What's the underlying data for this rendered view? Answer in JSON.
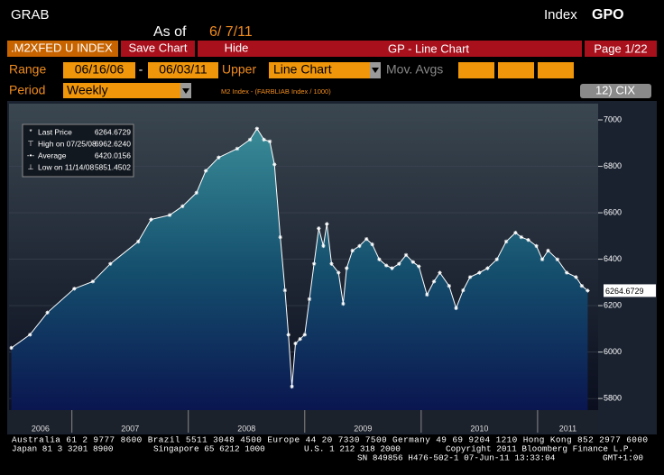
{
  "header": {
    "left": "GRAB",
    "as_of_label": "As of",
    "as_of_date": "6/ 7/11",
    "right_prefix": "Index",
    "right_code": "GPO"
  },
  "toolbar": {
    "ticker": ".M2XFED U INDEX",
    "save": "Save Chart",
    "hide": "Hide",
    "title": "GP - Line Chart",
    "page": "Page 1/22"
  },
  "controls": {
    "range_label": "Range",
    "start": "06/16/06",
    "dash": "-",
    "end": "06/03/11",
    "upper_label": "Upper",
    "upper_value": "Line Chart",
    "mov_avgs": "Mov. Avgs",
    "period_label": "Period",
    "period_value": "Weekly",
    "formula": "M2 Index - (FARBLIAB Index / 1000)",
    "cix": "12) CIX"
  },
  "chart_data": {
    "type": "area",
    "x": [
      2006.48,
      2006.64,
      2006.79,
      2007.02,
      2007.18,
      2007.33,
      2007.57,
      2007.68,
      2007.84,
      2007.95,
      2008.07,
      2008.15,
      2008.26,
      2008.42,
      2008.53,
      2008.59,
      2008.65,
      2008.7,
      2008.74,
      2008.79,
      2008.83,
      2008.86,
      2008.89,
      2008.92,
      2008.96,
      2009.0,
      2009.04,
      2009.08,
      2009.12,
      2009.16,
      2009.19,
      2009.23,
      2009.29,
      2009.33,
      2009.36,
      2009.41,
      2009.47,
      2009.53,
      2009.58,
      2009.64,
      2009.7,
      2009.75,
      2009.81,
      2009.87,
      2009.93,
      2009.98,
      2010.05,
      2010.11,
      2010.16,
      2010.24,
      2010.3,
      2010.36,
      2010.42,
      2010.5,
      2010.57,
      2010.65,
      2010.73,
      2010.81,
      2010.86,
      2010.92,
      2010.99,
      2011.04,
      2011.09,
      2011.17,
      2011.25,
      2011.33,
      2011.38,
      2011.43
    ],
    "values": [
      6018,
      6075,
      6170,
      6273,
      6304,
      6380,
      6476,
      6571,
      6590,
      6628,
      6686,
      6781,
      6838,
      6876,
      6915,
      6962.624,
      6915,
      6907,
      6808,
      6495,
      6266,
      6075,
      5851.4502,
      6037,
      6056,
      6075,
      6228,
      6380,
      6533,
      6457,
      6552,
      6380,
      6342,
      6208,
      6361,
      6437,
      6457,
      6487,
      6464,
      6399,
      6373,
      6361,
      6380,
      6418,
      6388,
      6369,
      6247,
      6304,
      6342,
      6285,
      6189,
      6266,
      6323,
      6342,
      6361,
      6399,
      6476,
      6514,
      6495,
      6483,
      6457,
      6399,
      6437,
      6399,
      6342,
      6323,
      6285,
      6264.6729
    ],
    "color": "#ffffff",
    "xlim": [
      2006.46,
      2011.52
    ],
    "xticks": [
      {
        "value": 2006.73,
        "label": "2006"
      },
      {
        "value": 2007.5,
        "label": "2007"
      },
      {
        "value": 2008.5,
        "label": "2008"
      },
      {
        "value": 2009.5,
        "label": "2009"
      },
      {
        "value": 2010.5,
        "label": "2010"
      },
      {
        "value": 2011.26,
        "label": "2011"
      }
    ],
    "x_separators": [
      2007,
      2008,
      2009,
      2010,
      2011
    ],
    "ylim": [
      5750,
      7070
    ],
    "yticks": [
      5800,
      6000,
      6200,
      6400,
      6600,
      6800,
      7000
    ],
    "grid": true,
    "legend": [
      {
        "label": "Last Price",
        "value": "6264.6729"
      },
      {
        "label": "High on 07/25/08",
        "value": "6962.6240"
      },
      {
        "label": "Average",
        "value": "6420.0156"
      },
      {
        "label": "Low on 11/14/08",
        "value": "5851.4502"
      }
    ]
  },
  "footer": {
    "line1": "Australia 61 2 9777 8600 Brazil 5511 3048 4500 Europe 44 20 7330 7500 Germany 49 69 9204 1210 Hong Kong 852 2977 6000",
    "japan": "Japan 81 3 3201 8900",
    "singapore": "Singapore 65 6212 1000",
    "us": "U.S. 1 212 318 2000",
    "copyright": "Copyright 2011 Bloomberg Finance L.P.",
    "sn": "SN 849856 H476-502-1 07-Jun-11 13:33:04",
    "gmt": "GMT+1:00"
  }
}
